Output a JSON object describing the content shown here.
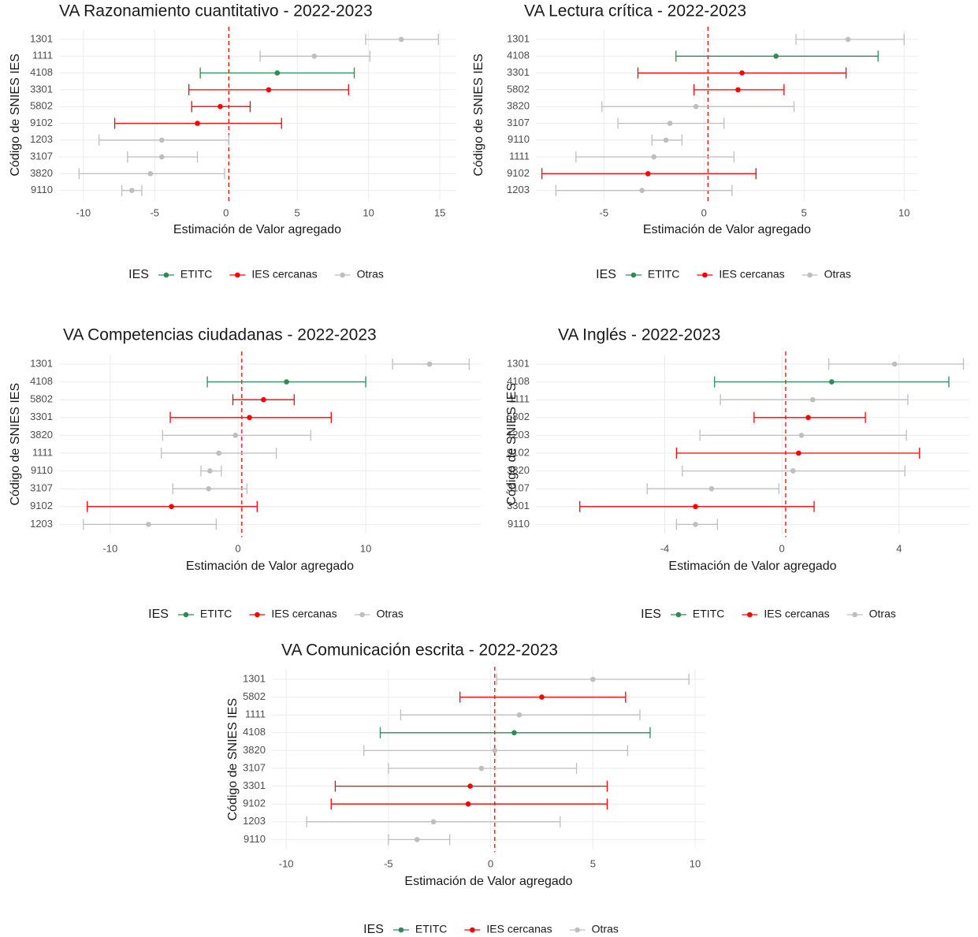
{
  "chart_data": [
    {
      "type": "errorbar",
      "title": "VA Razonamiento cuantitativo - 2022-2023",
      "x_label": "Estimación de Valor agregado",
      "y_label": "Código de SNIES IES",
      "legend_title": "IES",
      "categories": [
        "1301",
        "1111",
        "4108",
        "3301",
        "5802",
        "9102",
        "1203",
        "3107",
        "3820",
        "9110"
      ],
      "series": [
        {
          "name": "ETITC",
          "color": "#2e8b57",
          "values": [
            null,
            null,
            3.6,
            null,
            null,
            null,
            null,
            null,
            null,
            null
          ],
          "lower": [
            null,
            null,
            -1.8,
            null,
            null,
            null,
            null,
            null,
            null,
            null
          ],
          "upper": [
            null,
            null,
            9.0,
            null,
            null,
            null,
            null,
            null,
            null,
            null
          ]
        },
        {
          "name": "IES cercanas",
          "color": "#ff0000",
          "values": [
            null,
            null,
            null,
            3.0,
            -0.4,
            -2.0,
            null,
            null,
            null,
            null
          ],
          "lower": [
            null,
            null,
            null,
            -2.6,
            -2.4,
            -7.8,
            null,
            null,
            null,
            null
          ],
          "upper": [
            null,
            null,
            null,
            8.6,
            1.7,
            3.9,
            null,
            null,
            null,
            null
          ]
        },
        {
          "name": "Otras",
          "color": "#bebebe",
          "values": [
            12.3,
            6.2,
            null,
            null,
            null,
            null,
            -4.5,
            -4.5,
            -5.3,
            -6.6
          ],
          "lower": [
            9.8,
            2.4,
            null,
            null,
            null,
            null,
            -8.9,
            -6.9,
            -10.3,
            -7.3
          ],
          "upper": [
            14.9,
            10.1,
            null,
            null,
            null,
            null,
            0.2,
            -2.0,
            -0.1,
            -5.9
          ]
        }
      ],
      "xlim": [
        -11.7,
        16.1
      ],
      "xticks": [
        -10,
        -5,
        0,
        5,
        10,
        15
      ],
      "reference_line": 0.2,
      "grid": true
    },
    {
      "type": "errorbar",
      "title": "VA Lectura crítica - 2022-2023",
      "x_label": "Estimación de Valor agregado",
      "y_label": "Código de SNIES IES",
      "legend_title": "IES",
      "categories": [
        "1301",
        "4108",
        "3301",
        "5802",
        "3820",
        "3107",
        "9110",
        "1111",
        "9102",
        "1203"
      ],
      "series": [
        {
          "name": "ETITC",
          "color": "#2e8b57",
          "values": [
            null,
            3.6,
            null,
            null,
            null,
            null,
            null,
            null,
            null,
            null
          ],
          "lower": [
            null,
            -1.4,
            null,
            null,
            null,
            null,
            null,
            null,
            null,
            null
          ],
          "upper": [
            null,
            8.7,
            null,
            null,
            null,
            null,
            null,
            null,
            null,
            null
          ]
        },
        {
          "name": "IES cercanas",
          "color": "#ff0000",
          "values": [
            null,
            null,
            1.9,
            1.7,
            null,
            null,
            null,
            null,
            -2.8,
            null
          ],
          "lower": [
            null,
            null,
            -3.3,
            -0.5,
            null,
            null,
            null,
            null,
            -8.1,
            null
          ],
          "upper": [
            null,
            null,
            7.1,
            4.0,
            null,
            null,
            null,
            null,
            2.6,
            null
          ]
        },
        {
          "name": "Otras",
          "color": "#bebebe",
          "values": [
            7.2,
            null,
            null,
            null,
            -0.4,
            -1.7,
            -1.9,
            -2.5,
            null,
            -3.1
          ],
          "lower": [
            4.6,
            null,
            null,
            null,
            -5.1,
            -4.3,
            -2.6,
            -6.4,
            null,
            -7.4
          ],
          "upper": [
            10.0,
            null,
            null,
            null,
            4.5,
            1.0,
            -1.1,
            1.5,
            null,
            1.4
          ]
        }
      ],
      "xlim": [
        -8.4,
        10.7
      ],
      "xticks": [
        -5,
        0,
        5,
        10
      ],
      "reference_line": 0.2,
      "grid": true
    },
    {
      "type": "errorbar",
      "title": "VA Competencias ciudadanas - 2022-2023",
      "x_label": "Estimación de Valor agregado",
      "y_label": "Código de SNIES IES",
      "legend_title": "IES",
      "categories": [
        "1301",
        "4108",
        "5802",
        "3301",
        "3820",
        "1111",
        "9110",
        "3107",
        "9102",
        "1203"
      ],
      "series": [
        {
          "name": "ETITC",
          "color": "#2e8b57",
          "values": [
            null,
            3.8,
            null,
            null,
            null,
            null,
            null,
            null,
            null,
            null
          ],
          "lower": [
            null,
            -2.4,
            null,
            null,
            null,
            null,
            null,
            null,
            null,
            null
          ],
          "upper": [
            null,
            10.0,
            null,
            null,
            null,
            null,
            null,
            null,
            null,
            null
          ]
        },
        {
          "name": "IES cercanas",
          "color": "#ff0000",
          "values": [
            null,
            null,
            2.0,
            0.9,
            null,
            null,
            null,
            null,
            -5.2,
            null
          ],
          "lower": [
            null,
            null,
            -0.4,
            -5.3,
            null,
            null,
            null,
            null,
            -11.8,
            null
          ],
          "upper": [
            null,
            null,
            4.4,
            7.3,
            null,
            null,
            null,
            null,
            1.5,
            null
          ]
        },
        {
          "name": "Otras",
          "color": "#bebebe",
          "values": [
            15.0,
            null,
            null,
            null,
            -0.2,
            -1.5,
            -2.2,
            -2.3,
            null,
            -7.0
          ],
          "lower": [
            12.1,
            null,
            null,
            null,
            -5.9,
            -6.0,
            -2.9,
            -5.1,
            null,
            -12.1
          ],
          "upper": [
            18.1,
            null,
            null,
            null,
            5.7,
            3.0,
            -1.3,
            0.7,
            null,
            -1.7
          ]
        }
      ],
      "xlim": [
        -14,
        19
      ],
      "xticks": [
        -10,
        0,
        10
      ],
      "reference_line": 0.3,
      "grid": true
    },
    {
      "type": "errorbar",
      "title": "VA Inglés - 2022-2023",
      "x_label": "Estimación de Valor agregado",
      "y_label": "Código de SNIES IES",
      "legend_title": "IES",
      "categories": [
        "1301",
        "4108",
        "1111",
        "5802",
        "1203",
        "9102",
        "3820",
        "3107",
        "3301",
        "9110"
      ],
      "series": [
        {
          "name": "ETITC",
          "color": "#2e8b57",
          "values": [
            null,
            1.7,
            null,
            null,
            null,
            null,
            null,
            null,
            null,
            null
          ],
          "lower": [
            null,
            -2.3,
            null,
            null,
            null,
            null,
            null,
            null,
            null,
            null
          ],
          "upper": [
            null,
            5.7,
            null,
            null,
            null,
            null,
            null,
            null,
            null,
            null
          ]
        },
        {
          "name": "IES cercanas",
          "color": "#ff0000",
          "values": [
            null,
            null,
            null,
            0.9,
            null,
            0.57,
            null,
            null,
            -2.95,
            null
          ],
          "lower": [
            null,
            null,
            null,
            -0.95,
            null,
            -3.6,
            null,
            null,
            -6.9,
            null
          ],
          "upper": [
            null,
            null,
            null,
            2.85,
            null,
            4.7,
            null,
            null,
            1.1,
            null
          ]
        },
        {
          "name": "Otras",
          "color": "#bebebe",
          "values": [
            3.85,
            null,
            1.05,
            null,
            0.67,
            null,
            0.38,
            -2.4,
            null,
            -2.95
          ],
          "lower": [
            1.6,
            null,
            -2.1,
            null,
            -2.8,
            null,
            -3.4,
            -4.6,
            null,
            -3.6
          ],
          "upper": [
            6.2,
            null,
            4.3,
            null,
            4.25,
            null,
            4.2,
            -0.1,
            null,
            -2.2
          ]
        }
      ],
      "xlim": [
        -8.4,
        6.4
      ],
      "xticks": [
        -4,
        0,
        4
      ],
      "reference_line": 0.13,
      "grid": true
    },
    {
      "type": "errorbar",
      "title": "VA Comunicación escrita - 2022-2023",
      "x_label": "Estimación de Valor agregado",
      "y_label": "Código de SNIES IES",
      "legend_title": "IES",
      "categories": [
        "1301",
        "5802",
        "1111",
        "4108",
        "3820",
        "3107",
        "3301",
        "9102",
        "1203",
        "9110"
      ],
      "series": [
        {
          "name": "ETITC",
          "color": "#2e8b57",
          "values": [
            null,
            null,
            null,
            1.15,
            null,
            null,
            null,
            null,
            null,
            null
          ],
          "lower": [
            null,
            null,
            null,
            -5.4,
            null,
            null,
            null,
            null,
            null,
            null
          ],
          "upper": [
            null,
            null,
            null,
            7.8,
            null,
            null,
            null,
            null,
            null,
            null
          ]
        },
        {
          "name": "IES cercanas",
          "color": "#ff0000",
          "values": [
            null,
            2.5,
            null,
            null,
            null,
            null,
            -1.0,
            -1.1,
            null,
            null
          ],
          "lower": [
            null,
            -1.5,
            null,
            null,
            null,
            null,
            -7.6,
            -7.8,
            null,
            null
          ],
          "upper": [
            null,
            6.6,
            null,
            null,
            null,
            null,
            5.7,
            5.7,
            null,
            null
          ]
        },
        {
          "name": "Otras",
          "color": "#bebebe",
          "values": [
            5.0,
            null,
            1.4,
            null,
            0.2,
            -0.45,
            null,
            null,
            -2.8,
            -3.6
          ],
          "lower": [
            0.3,
            null,
            -4.4,
            null,
            -6.2,
            -5.0,
            null,
            null,
            -9.0,
            -5.0
          ],
          "upper": [
            9.7,
            null,
            7.3,
            null,
            6.7,
            4.2,
            null,
            null,
            3.4,
            -2.0
          ]
        }
      ],
      "xlim": [
        -10.7,
        10.5
      ],
      "xticks": [
        -10,
        -5,
        0,
        5,
        10
      ],
      "reference_line": 0.2,
      "grid": true
    }
  ]
}
